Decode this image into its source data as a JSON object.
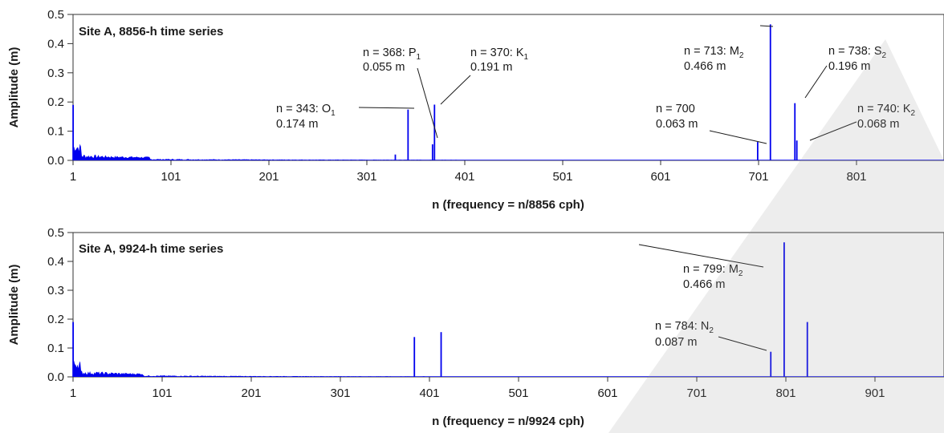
{
  "chart_data": [
    {
      "type": "bar",
      "title": "Site A, 8856-h time series",
      "xlabel": "n  (frequency = n/8856 cph)",
      "ylabel": "Amplitude (m)",
      "xlim": [
        1,
        891
      ],
      "ylim": [
        0,
        0.5
      ],
      "xticks": [
        "1",
        "101",
        "201",
        "301",
        "401",
        "501",
        "601",
        "701",
        "801"
      ],
      "yticks": [
        "0.0",
        "0.1",
        "0.2",
        "0.3",
        "0.4",
        "0.5"
      ],
      "bar_color": "#0000ee",
      "peaks": [
        {
          "n": 1,
          "value": 0.19
        },
        {
          "n": 330,
          "value": 0.02
        },
        {
          "n": 343,
          "value": 0.174
        },
        {
          "n": 368,
          "value": 0.055
        },
        {
          "n": 370,
          "value": 0.191
        },
        {
          "n": 700,
          "value": 0.063
        },
        {
          "n": 713,
          "value": 0.466
        },
        {
          "n": 738,
          "value": 0.196
        },
        {
          "n": 740,
          "value": 0.068
        }
      ],
      "annotations": [
        {
          "line1": "n = 343: O",
          "sub": "1",
          "line2": "0.174 m"
        },
        {
          "line1": "n = 368: P",
          "sub": "1",
          "line2": "0.055 m"
        },
        {
          "line1": "n = 370: K",
          "sub": "1",
          "line2": "0.191 m"
        },
        {
          "line1": "n = 700",
          "sub": "",
          "line2": "0.063 m"
        },
        {
          "line1": "n = 713: M",
          "sub": "2",
          "line2": "0.466 m"
        },
        {
          "line1": "n = 738: S",
          "sub": "2",
          "line2": "0.196 m"
        },
        {
          "line1": "n = 740: K",
          "sub": "2",
          "line2": "0.068 m"
        }
      ]
    },
    {
      "type": "bar",
      "title": "Site A, 9924-h time series",
      "xlabel": "n  (frequency = n/9924 cph)",
      "ylabel": "Amplitude (m)",
      "xlim": [
        1,
        985
      ],
      "ylim": [
        0,
        0.5
      ],
      "xticks": [
        "1",
        "101",
        "201",
        "301",
        "401",
        "501",
        "601",
        "701",
        "801",
        "901"
      ],
      "yticks": [
        "0.0",
        "0.1",
        "0.2",
        "0.3",
        "0.4",
        "0.5"
      ],
      "bar_color": "#0000ee",
      "peaks": [
        {
          "n": 1,
          "value": 0.19
        },
        {
          "n": 384,
          "value": 0.138
        },
        {
          "n": 414,
          "value": 0.155
        },
        {
          "n": 784,
          "value": 0.087
        },
        {
          "n": 799,
          "value": 0.466
        },
        {
          "n": 825,
          "value": 0.19
        }
      ],
      "annotations": [
        {
          "line1": "n = 799: M",
          "sub": "2",
          "line2": "0.466 m"
        },
        {
          "line1": "n = 784: N",
          "sub": "2",
          "line2": "0.087 m"
        }
      ]
    }
  ]
}
